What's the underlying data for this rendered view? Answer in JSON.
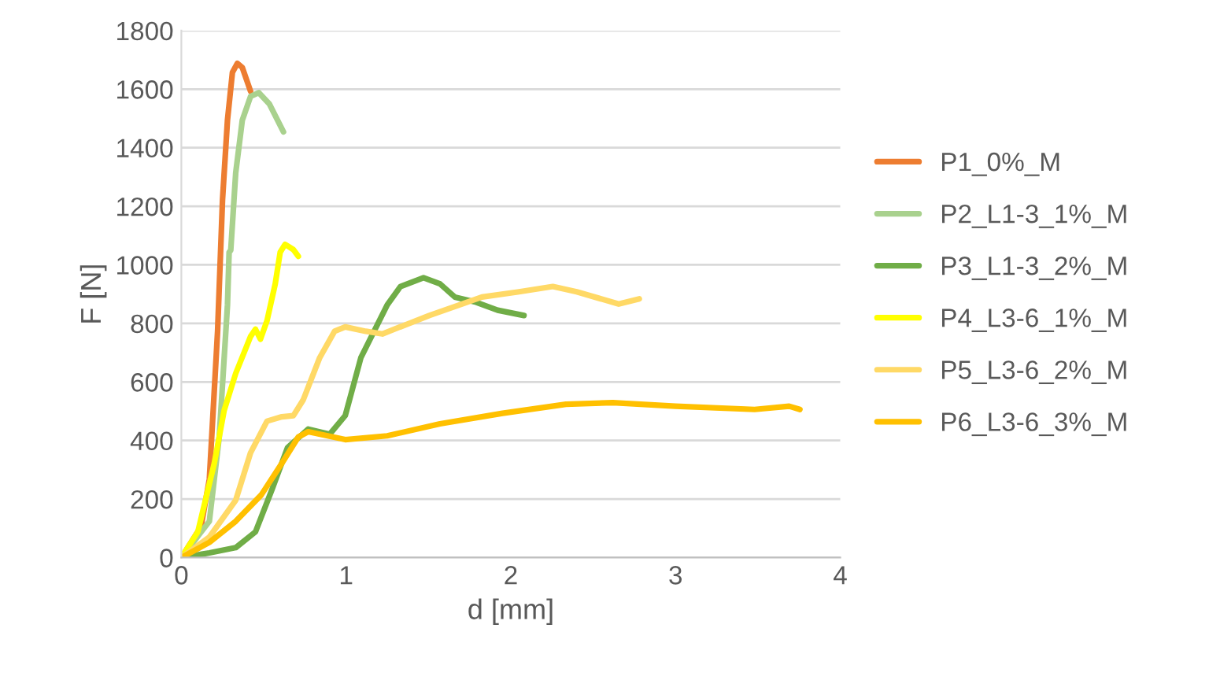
{
  "chart_data": {
    "type": "line",
    "xlabel": "d [mm]",
    "ylabel": "F [N]",
    "xlim": [
      0,
      4
    ],
    "ylim": [
      0,
      1800
    ],
    "xticks": [
      0,
      1,
      2,
      3,
      4
    ],
    "yticks": [
      0,
      200,
      400,
      600,
      800,
      1000,
      1200,
      1400,
      1600,
      1800
    ],
    "grid": "y",
    "legend": "right",
    "marker": "none",
    "line_style": "solid",
    "series": [
      {
        "name": "P1_0%_M",
        "color": "#ed7d31",
        "x": [
          0,
          0.12,
          0.17,
          0.22,
          0.25,
          0.28,
          0.31,
          0.34,
          0.37,
          0.42
        ],
        "values": [
          0,
          106,
          268,
          773,
          1223,
          1494,
          1657,
          1688,
          1674,
          1593
        ]
      },
      {
        "name": "P2_L1-3_1%_M",
        "color": "#a9d18e",
        "x": [
          0,
          0.17,
          0.23,
          0.28,
          0.29,
          0.3,
          0.33,
          0.37,
          0.42,
          0.47,
          0.535,
          0.62
        ],
        "values": [
          0,
          124,
          412,
          863,
          1043,
          1050,
          1314,
          1494,
          1575,
          1588,
          1549,
          1454
        ]
      },
      {
        "name": "P3_L1-3_2%_M",
        "color": "#70ad47",
        "x": [
          0,
          0.17,
          0.33,
          0.45,
          0.55,
          0.645,
          0.77,
          0.9,
          0.995,
          1.09,
          1.25,
          1.33,
          1.47,
          1.57,
          1.66,
          1.79,
          1.92,
          2.08
        ],
        "values": [
          0,
          16,
          34,
          88,
          232,
          376,
          439,
          421,
          485,
          683,
          863,
          926,
          956,
          935,
          890,
          872,
          845,
          827
        ]
      },
      {
        "name": "P4_L3-6_1%_M",
        "color": "#ffff00",
        "x": [
          0,
          0.1,
          0.2,
          0.26,
          0.33,
          0.42,
          0.45,
          0.48,
          0.52,
          0.57,
          0.6,
          0.63,
          0.68,
          0.71
        ],
        "values": [
          0,
          88,
          322,
          503,
          629,
          755,
          780,
          746,
          809,
          935,
          1043,
          1070,
          1052,
          1029
        ]
      },
      {
        "name": "P5_L3-6_2%_M",
        "color": "#ffd966",
        "x": [
          0,
          0.17,
          0.33,
          0.42,
          0.52,
          0.61,
          0.68,
          0.74,
          0.84,
          0.93,
          0.995,
          1.12,
          1.22,
          1.505,
          1.825,
          2.05,
          2.255,
          2.4,
          2.655,
          2.78
        ],
        "values": [
          0,
          70,
          196,
          358,
          466,
          481,
          485,
          539,
          683,
          773,
          788,
          773,
          764,
          827,
          890,
          908,
          926,
          908,
          866,
          884
        ]
      },
      {
        "name": "P6_L3-6_3%_M",
        "color": "#ffc000",
        "x": [
          0,
          0.17,
          0.33,
          0.485,
          0.61,
          0.71,
          0.77,
          0.995,
          1.25,
          1.57,
          1.95,
          2.335,
          2.62,
          3.0,
          3.48,
          3.69,
          3.755
        ],
        "values": [
          0,
          52,
          124,
          214,
          322,
          412,
          430,
          403,
          416,
          457,
          493,
          524,
          529,
          517,
          506,
          517,
          506
        ]
      }
    ]
  }
}
